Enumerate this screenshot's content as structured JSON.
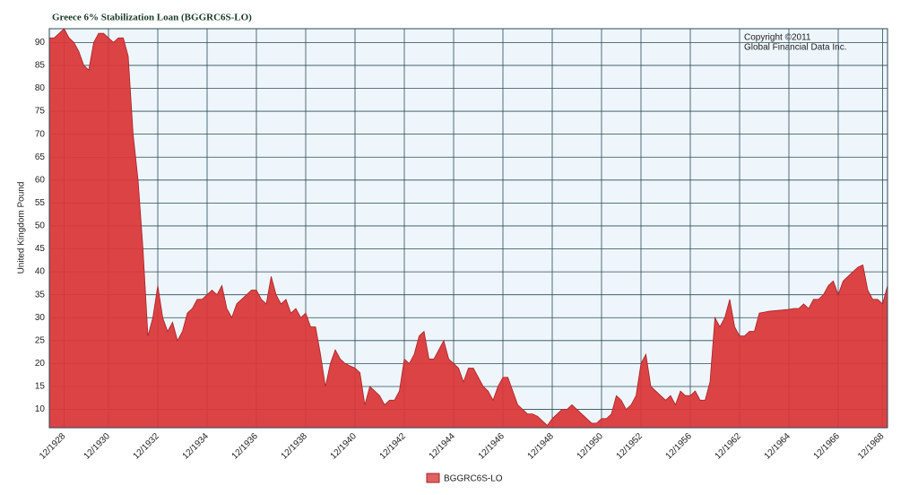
{
  "chart_data": {
    "type": "area",
    "title": "Greece 6% Stabilization Loan (BGGRC6S-LO)",
    "y_label": "United Kingdom Pound",
    "annotations": [
      "Copyright ©2011",
      "Global Financial Data Inc."
    ],
    "categories": [
      null,
      null,
      null,
      "12/1928",
      null,
      null,
      null,
      null,
      null,
      null,
      null,
      null,
      "12/1930",
      null,
      null,
      null,
      null,
      null,
      null,
      null,
      null,
      null,
      "12/1932",
      null,
      null,
      null,
      null,
      null,
      null,
      null,
      null,
      null,
      "12/1934",
      null,
      null,
      null,
      null,
      null,
      null,
      null,
      null,
      null,
      "12/1936",
      null,
      null,
      null,
      null,
      null,
      null,
      null,
      null,
      null,
      "12/1938",
      null,
      null,
      null,
      null,
      null,
      null,
      null,
      null,
      null,
      "12/1940",
      null,
      null,
      null,
      null,
      null,
      null,
      null,
      null,
      null,
      "12/1942",
      null,
      null,
      null,
      null,
      null,
      null,
      null,
      null,
      null,
      "12/1944",
      null,
      null,
      null,
      null,
      null,
      null,
      null,
      null,
      null,
      "12/1946",
      null,
      null,
      null,
      null,
      null,
      null,
      null,
      null,
      null,
      "12/1948",
      null,
      null,
      null,
      null,
      null,
      null,
      null,
      null,
      null,
      "12/1950",
      null,
      null,
      null,
      null,
      null,
      null,
      null,
      "12/1952",
      null,
      null,
      null,
      null,
      null,
      null,
      null,
      null,
      null,
      "12/1956",
      null,
      null,
      null,
      null,
      null,
      null,
      null,
      null,
      null,
      "12/1962",
      null,
      null,
      null,
      null,
      null,
      null,
      null,
      null,
      null,
      "12/1964",
      null,
      null,
      null,
      null,
      null,
      null,
      null,
      null,
      null,
      "12/1966",
      null,
      null,
      null,
      null,
      null,
      null,
      null,
      null,
      "12/1968",
      null
    ],
    "series": [
      {
        "name": "BGGRC6S-LO",
        "color": "#d9393b",
        "values": [
          91,
          91,
          92,
          93,
          91,
          90,
          88,
          85,
          84,
          90,
          92,
          92,
          91,
          90,
          91,
          91,
          87,
          70,
          60,
          45,
          26,
          30,
          37,
          30,
          27,
          29,
          25,
          27,
          31,
          32,
          34,
          34,
          35,
          36,
          35,
          37,
          32,
          30,
          33,
          34,
          35,
          36,
          36,
          34,
          33,
          39,
          35,
          33,
          34,
          31,
          32,
          30,
          31,
          28,
          28,
          22,
          15,
          20,
          23,
          21,
          20,
          19.5,
          19,
          18,
          11,
          15,
          14,
          13,
          11,
          12,
          12,
          14,
          21,
          20,
          22,
          26,
          27,
          21,
          21,
          23,
          25,
          21,
          20,
          19,
          16,
          19,
          19,
          17,
          15,
          14,
          12,
          15,
          17,
          17,
          14,
          11,
          10,
          9,
          9,
          8.5,
          7.5,
          6.5,
          8,
          9,
          10,
          10,
          11,
          10,
          9,
          8,
          7,
          7,
          8,
          8,
          9,
          13,
          12,
          10,
          11,
          13,
          20,
          22,
          15,
          14,
          13,
          12,
          13,
          11,
          14,
          13,
          13,
          14,
          12,
          12,
          16,
          30,
          28,
          30,
          34,
          28,
          26,
          26,
          27,
          27,
          31,
          31.2,
          31.4,
          31.5,
          31.6,
          31.7,
          31.8,
          32,
          32,
          33,
          32,
          34,
          34,
          35,
          37,
          38,
          35,
          38,
          39,
          40,
          41,
          41.5,
          36,
          34,
          34,
          33,
          37
        ]
      }
    ],
    "ylim": [
      6,
      93
    ],
    "yticks": [
      10,
      15,
      20,
      25,
      30,
      35,
      40,
      45,
      50,
      55,
      60,
      65,
      70,
      75,
      80,
      85,
      90
    ],
    "grid": true
  }
}
